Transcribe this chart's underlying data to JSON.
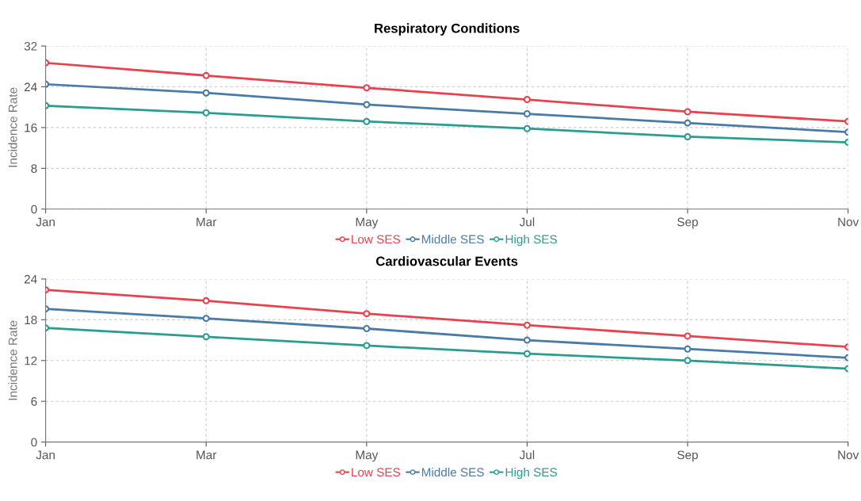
{
  "chart_data": [
    {
      "type": "line",
      "title": "Respiratory Conditions",
      "ylabel": "Incidence Rate",
      "categories": [
        "Jan",
        "Mar",
        "May",
        "Jul",
        "Sep",
        "Nov"
      ],
      "ylim": [
        0,
        32
      ],
      "yticks": [
        0,
        8,
        16,
        24,
        32
      ],
      "grid": true,
      "legend": "bottom",
      "marker": "circle",
      "line_style": "solid",
      "series": [
        {
          "name": "Low SES",
          "color": "#e8414f",
          "values": [
            28.7,
            26.2,
            23.8,
            21.5,
            19.1,
            17.2
          ]
        },
        {
          "name": "Middle SES",
          "color": "#4a7aa8",
          "values": [
            24.5,
            22.8,
            20.5,
            18.7,
            16.9,
            15.1
          ]
        },
        {
          "name": "High SES",
          "color": "#2a9d8f",
          "values": [
            20.3,
            18.9,
            17.2,
            15.8,
            14.2,
            13.1
          ]
        }
      ]
    },
    {
      "type": "line",
      "title": "Cardiovascular Events",
      "ylabel": "Incidence Rate",
      "categories": [
        "Jan",
        "Mar",
        "May",
        "Jul",
        "Sep",
        "Nov"
      ],
      "ylim": [
        0,
        24
      ],
      "yticks": [
        0,
        6,
        12,
        18,
        24
      ],
      "grid": true,
      "legend": "bottom",
      "marker": "circle",
      "line_style": "solid",
      "series": [
        {
          "name": "Low SES",
          "color": "#e8414f",
          "values": [
            22.4,
            20.8,
            18.9,
            17.2,
            15.6,
            14.0
          ]
        },
        {
          "name": "Middle SES",
          "color": "#4a7aa8",
          "values": [
            19.6,
            18.2,
            16.7,
            15.0,
            13.7,
            12.4
          ]
        },
        {
          "name": "High SES",
          "color": "#2a9d8f",
          "values": [
            16.8,
            15.5,
            14.2,
            13.0,
            12.0,
            10.8
          ]
        }
      ]
    }
  ]
}
